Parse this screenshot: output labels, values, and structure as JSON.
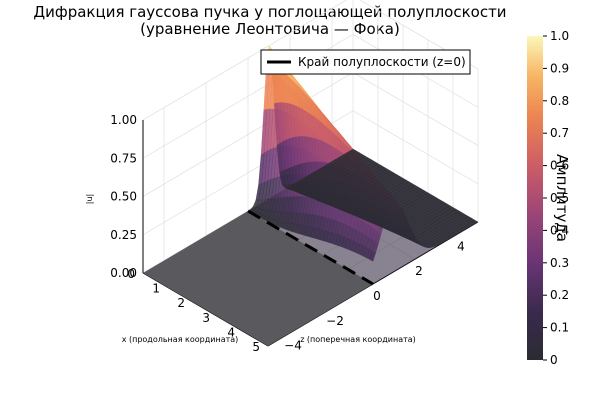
{
  "chart_data": {
    "type": "surface",
    "title_line1": "Дифракция гауссова пучка у поглощающей полуплоскости",
    "title_line2": "(уравнение Леонтовича — Фока)",
    "xlabel": "x (продольная координата)",
    "ylabel": "z (поперечная координата)",
    "zlabel": "|u|",
    "colorbar_label": "Амплитуда",
    "xlim": [
      0,
      5
    ],
    "ylim": [
      -5,
      5
    ],
    "zlim": [
      0,
      1
    ],
    "clim": [
      0,
      1
    ],
    "x_ticks": [
      "0",
      "1",
      "2",
      "3",
      "4",
      "5"
    ],
    "y_ticks": [
      "−4",
      "−2",
      "0",
      "2",
      "4"
    ],
    "z_ticks": [
      "0.00",
      "0.25",
      "0.50",
      "0.75",
      "1.00"
    ],
    "colorbar_ticks": [
      "0",
      "0.1",
      "0.2",
      "0.3",
      "0.4",
      "0.5",
      "0.6",
      "0.7",
      "0.8",
      "0.9",
      "1.0"
    ],
    "colormap": "inferno",
    "grid": true,
    "legend_position": "top-right",
    "series": [
      {
        "name": "Край полуплоскости (z=0)",
        "kind": "line",
        "color": "#000000",
        "style": "dashed",
        "x": [
          0,
          5
        ],
        "y": [
          0,
          0
        ],
        "z": [
          0,
          0
        ]
      }
    ],
    "surface_description_values": {
      "beam_center_z": 1.0,
      "beam_peak_amplitude_at_x0": 1.0,
      "beam_peak_amplitude_at_x5": 0.45,
      "amplitude_for_z_below_0": 0.0
    }
  }
}
